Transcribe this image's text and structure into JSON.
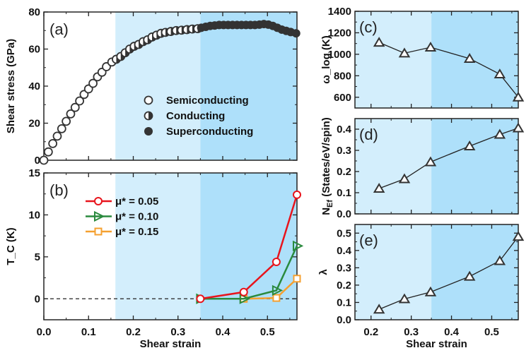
{
  "colors": {
    "light_region": "#d3eefc",
    "dark_region": "#aee0fa",
    "marker": "#333333",
    "red": "#e8141c",
    "green": "#2a8a3e",
    "orange": "#f5a030"
  },
  "regions": [
    {
      "from": 0.16,
      "to": 0.35
    },
    {
      "from": 0.35,
      "to": 0.566
    }
  ],
  "chart_data": [
    {
      "id": "a",
      "type": "scatter",
      "panel_label": "(a)",
      "ylabel": "Shear stress (GPa)",
      "xlabel": "",
      "xlim": [
        0,
        0.566
      ],
      "ylim": [
        0,
        80
      ],
      "xticks": [
        "0.0",
        "0.1",
        "0.2",
        "0.3",
        "0.4",
        "0.5"
      ],
      "yticks": [
        "0",
        "20",
        "40",
        "60",
        "80"
      ],
      "legend": [
        "Semiconducting",
        "Conducting",
        "Superconducting"
      ],
      "series": [
        {
          "name": "Semiconducting",
          "x": [
            0,
            0.01,
            0.02,
            0.03,
            0.04,
            0.05,
            0.06,
            0.07,
            0.08,
            0.09,
            0.1,
            0.11,
            0.12,
            0.13,
            0.14,
            0.152
          ],
          "y": [
            0,
            4.5,
            9,
            13,
            17,
            21,
            25,
            28.5,
            32,
            35.5,
            38.5,
            41.5,
            45,
            47.5,
            50.5,
            53
          ]
        },
        {
          "name": "Conducting",
          "x": [
            0.162,
            0.172,
            0.182,
            0.192,
            0.202,
            0.212,
            0.222,
            0.232,
            0.242,
            0.252,
            0.262,
            0.272,
            0.284,
            0.296,
            0.308,
            0.32,
            0.332,
            0.344
          ],
          "y": [
            54.5,
            56,
            58,
            60,
            61.5,
            62.5,
            64,
            65,
            66.5,
            67.5,
            68.5,
            69,
            69.5,
            70,
            70.2,
            70.5,
            70.8,
            71
          ]
        },
        {
          "name": "Superconducting",
          "x": [
            0.352,
            0.362,
            0.372,
            0.382,
            0.392,
            0.402,
            0.412,
            0.422,
            0.432,
            0.442,
            0.452,
            0.462,
            0.472,
            0.482,
            0.492,
            0.502,
            0.512,
            0.522,
            0.532,
            0.542,
            0.552,
            0.564
          ],
          "y": [
            71.5,
            72,
            72.5,
            72.7,
            73,
            73,
            73,
            73,
            73,
            73,
            73,
            73,
            73,
            73.2,
            73.5,
            73.2,
            72.5,
            71.5,
            70.5,
            69.8,
            69.2,
            68.5
          ]
        }
      ]
    },
    {
      "id": "b",
      "type": "line",
      "panel_label": "(b)",
      "ylabel": "T_C (K)",
      "xlabel": "Shear strain",
      "xlim": [
        0,
        0.566
      ],
      "ylim": [
        -2.5,
        15
      ],
      "xticks": [
        "0.0",
        "0.1",
        "0.2",
        "0.3",
        "0.4",
        "0.5"
      ],
      "yticks": [
        "0",
        "5",
        "10",
        "15"
      ],
      "series": [
        {
          "name": "μ* = 0.05",
          "x": [
            0.35,
            0.447,
            0.52,
            0.566
          ],
          "y": [
            0,
            0.8,
            4.4,
            12.4
          ]
        },
        {
          "name": "μ* = 0.10",
          "x": [
            0.35,
            0.447,
            0.52,
            0.566
          ],
          "y": [
            0,
            0,
            1.0,
            6.3
          ]
        },
        {
          "name": "μ* = 0.15",
          "x": [
            0.447,
            0.52,
            0.566
          ],
          "y": [
            0,
            0.1,
            2.4
          ]
        }
      ]
    },
    {
      "id": "c",
      "type": "line",
      "panel_label": "(c)",
      "ylabel": "ω_log (K)",
      "xlim": [
        0.16,
        0.566
      ],
      "ylim": [
        500,
        1400
      ],
      "xticks": [
        "0.2",
        "0.3",
        "0.4",
        "0.5"
      ],
      "yticks": [
        "600",
        "800",
        "1000",
        "1200",
        "1400"
      ],
      "series": [
        {
          "name": "omega_log",
          "x": [
            0.22,
            0.283,
            0.348,
            0.445,
            0.52,
            0.566
          ],
          "y": [
            1110,
            1010,
            1065,
            960,
            815,
            600
          ]
        }
      ]
    },
    {
      "id": "d",
      "type": "line",
      "panel_label": "(d)",
      "ylabel": "N_Ef (States/eV/spin)",
      "xlim": [
        0.16,
        0.566
      ],
      "ylim": [
        0,
        0.45
      ],
      "xticks": [
        "0.2",
        "0.3",
        "0.4",
        "0.5"
      ],
      "yticks": [
        "0.0",
        "0.1",
        "0.2",
        "0.3",
        "0.4"
      ],
      "series": [
        {
          "name": "N_Ef",
          "x": [
            0.22,
            0.283,
            0.348,
            0.445,
            0.52,
            0.566
          ],
          "y": [
            0.12,
            0.165,
            0.245,
            0.32,
            0.375,
            0.405
          ]
        }
      ]
    },
    {
      "id": "e",
      "type": "line",
      "panel_label": "(e)",
      "ylabel": "λ",
      "xlabel": "Shear strain",
      "xlim": [
        0.16,
        0.566
      ],
      "ylim": [
        0,
        0.55
      ],
      "xticks": [
        "0.2",
        "0.3",
        "0.4",
        "0.5"
      ],
      "yticks": [
        "0.0",
        "0.1",
        "0.2",
        "0.3",
        "0.4",
        "0.5"
      ],
      "series": [
        {
          "name": "lambda",
          "x": [
            0.22,
            0.283,
            0.348,
            0.445,
            0.52,
            0.566
          ],
          "y": [
            0.06,
            0.12,
            0.16,
            0.25,
            0.34,
            0.48
          ]
        }
      ]
    }
  ]
}
